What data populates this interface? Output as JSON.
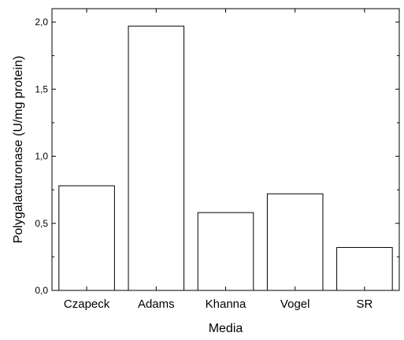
{
  "chart_data": {
    "type": "bar",
    "categories": [
      "Czapeck",
      "Adams",
      "Khanna",
      "Vogel",
      "SR"
    ],
    "values": [
      0.78,
      1.97,
      0.58,
      0.72,
      0.32
    ],
    "xlabel": "Media",
    "ylabel": "Polygalacturonase (U/mg protein)",
    "ylim": [
      0,
      2.1
    ],
    "yticks": [
      "0,0",
      "0,5",
      "1,0",
      "1,5",
      "2,0"
    ],
    "ytick_values": [
      0,
      0.5,
      1.0,
      1.5,
      2.0
    ],
    "grid": false,
    "bar_fill": "#ffffff",
    "bar_stroke": "#000000"
  }
}
